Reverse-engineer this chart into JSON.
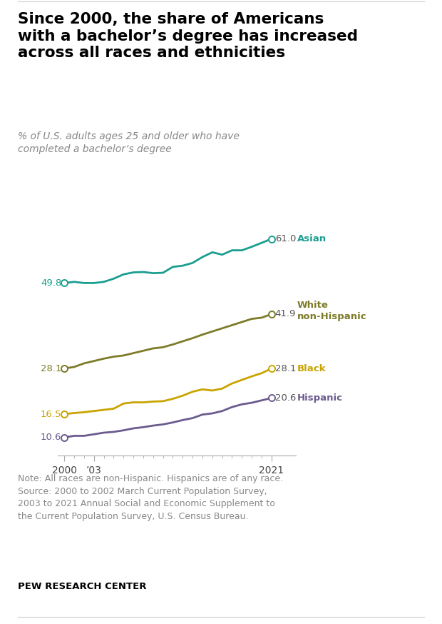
{
  "title": "Since 2000, the share of Americans\nwith a bachelor’s degree has increased\nacross all races and ethnicities",
  "subtitle": "% of U.S. adults ages 25 and older who have\ncompleted a bachelor’s degree",
  "years": [
    2000,
    2001,
    2002,
    2003,
    2004,
    2005,
    2006,
    2007,
    2008,
    2009,
    2010,
    2011,
    2012,
    2013,
    2014,
    2015,
    2016,
    2017,
    2018,
    2019,
    2020,
    2021
  ],
  "asian": [
    49.8,
    50.1,
    49.8,
    49.8,
    50.1,
    50.9,
    52.0,
    52.5,
    52.6,
    52.3,
    52.4,
    53.9,
    54.2,
    54.9,
    56.4,
    57.6,
    57.0,
    58.1,
    58.1,
    59.0,
    60.0,
    61.0
  ],
  "white": [
    28.1,
    28.5,
    29.4,
    30.0,
    30.6,
    31.1,
    31.4,
    32.0,
    32.6,
    33.2,
    33.5,
    34.2,
    35.0,
    35.8,
    36.7,
    37.5,
    38.3,
    39.1,
    39.9,
    40.7,
    41.0,
    41.9
  ],
  "black": [
    16.5,
    16.8,
    17.0,
    17.3,
    17.6,
    17.9,
    19.2,
    19.5,
    19.5,
    19.7,
    19.8,
    20.4,
    21.2,
    22.2,
    22.8,
    22.5,
    23.0,
    24.3,
    25.2,
    26.1,
    26.9,
    28.1
  ],
  "hispanic": [
    10.6,
    11.0,
    11.0,
    11.4,
    11.8,
    12.0,
    12.4,
    12.9,
    13.2,
    13.6,
    13.9,
    14.4,
    15.0,
    15.5,
    16.4,
    16.7,
    17.3,
    18.3,
    19.0,
    19.4,
    20.0,
    20.6
  ],
  "asian_color": "#1a9e8f",
  "white_color": "#7d7b28",
  "black_color": "#c9a400",
  "hispanic_color": "#6b5b8e",
  "note": "Note: All races are non-Hispanic. Hispanics are of any race.\nSource: 2000 to 2002 March Current Population Survey,\n2003 to 2021 Annual Social and Economic Supplement to\nthe Current Population Survey, U.S. Census Bureau.",
  "footer": "PEW RESEARCH CENTER",
  "background_color": "#ffffff",
  "xlim": [
    1999.3,
    2023.5
  ],
  "ylim": [
    6,
    67
  ]
}
